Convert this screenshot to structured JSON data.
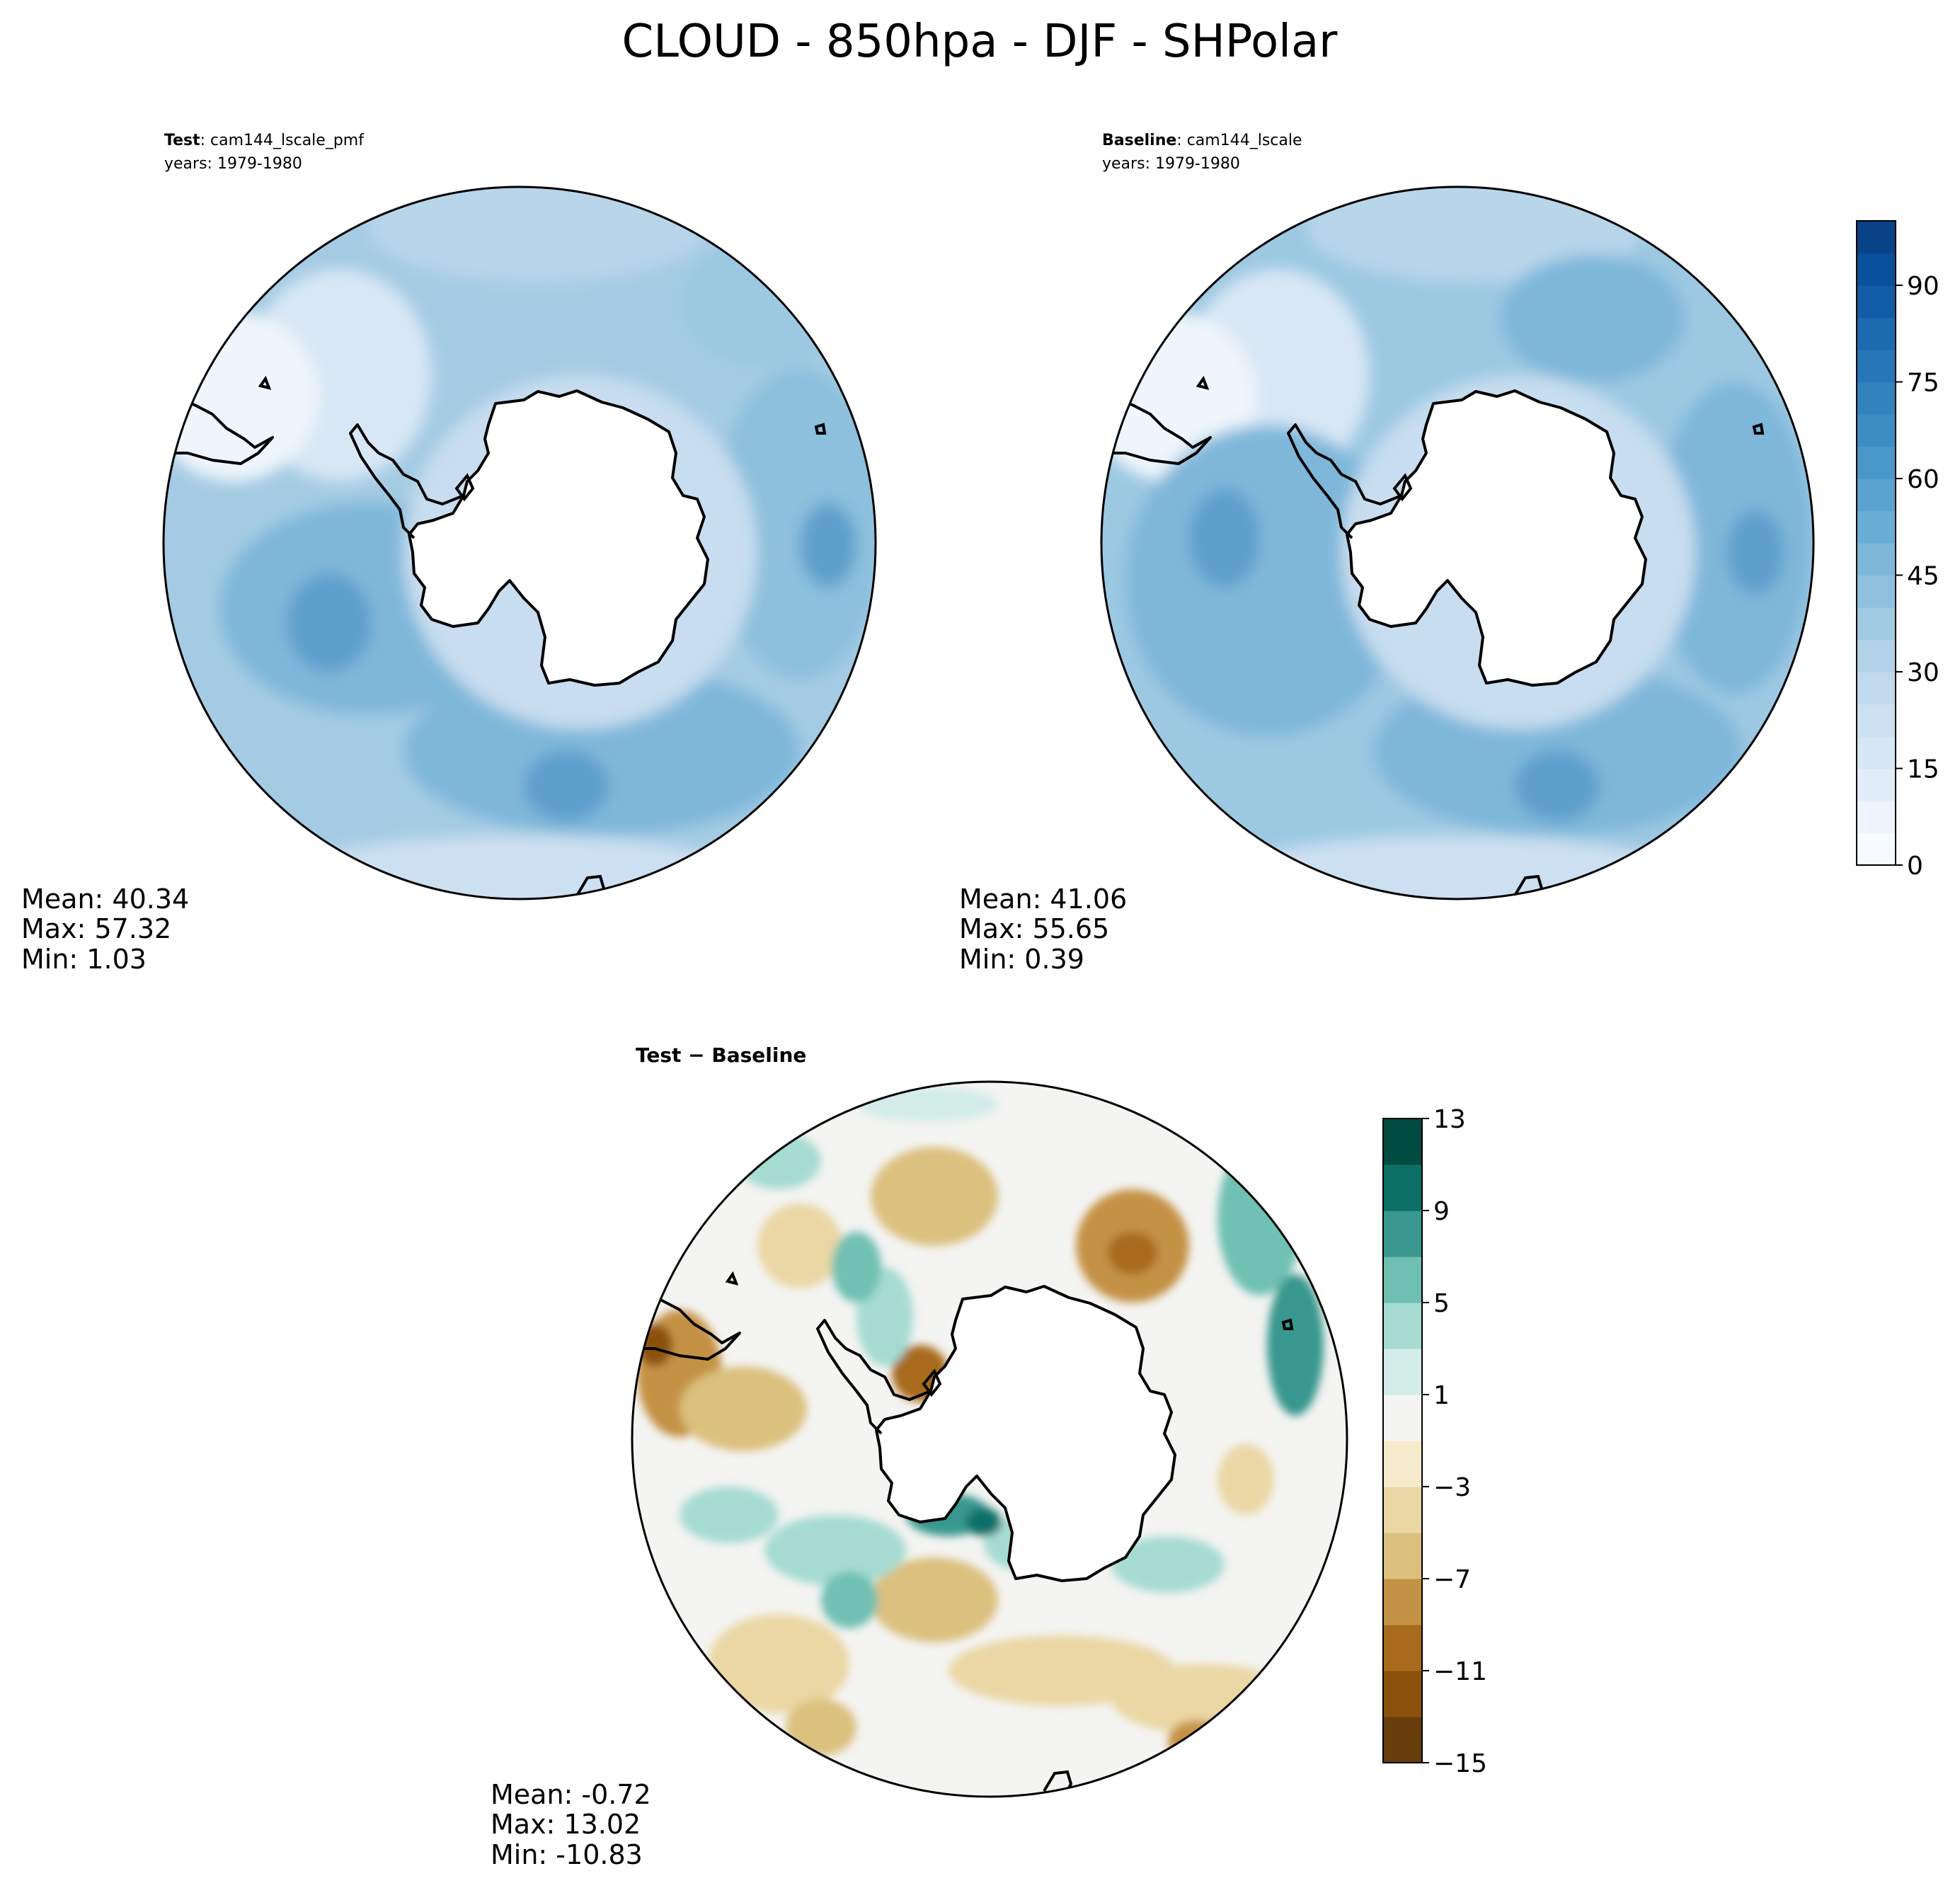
{
  "title": "CLOUD - 850hpa - DJF - SHPolar",
  "colors": {
    "land": "#ffffff",
    "blues": [
      "#f7fbff",
      "#ecf4fc",
      "#e0ecf8",
      "#d6e6f4",
      "#cde0f1",
      "#c0d9ed",
      "#b2d2e8",
      "#a1cbe2",
      "#8fc1de",
      "#7db8da",
      "#6aaed6",
      "#5aa2cf",
      "#4a98c9",
      "#3d8dc4",
      "#3282be",
      "#2777b8",
      "#1c6ab0",
      "#115ca5",
      "#08509b",
      "#084388",
      "#08306b"
    ],
    "diff": [
      "#673d0b",
      "#8a510c",
      "#a86a1d",
      "#c49244",
      "#dbc07e",
      "#ead7a4",
      "#f6ebcc",
      "#f4f4f2",
      "#d3ece8",
      "#a6dbd1",
      "#6fc0b3",
      "#38978e",
      "#0d7067",
      "#024b40"
    ]
  },
  "chart_data": [
    {
      "type": "heatmap",
      "panel": "test",
      "label_bold": "Test",
      "label_rest": ": cam144_lscale_pmf",
      "years": "years: 1979-1980",
      "stats": [
        "Mean: 40.34",
        "Max: 57.32",
        "Min:  1.03"
      ],
      "mean": 40.34,
      "max": 57.32,
      "min": 1.03,
      "projection": "south-polar-stereographic"
    },
    {
      "type": "heatmap",
      "panel": "baseline",
      "label_bold": "Baseline",
      "label_rest": ": cam144_lscale",
      "years": "years: 1979-1980",
      "stats": [
        "Mean: 41.06",
        "Max: 55.65",
        "Min:  0.39"
      ],
      "mean": 41.06,
      "max": 55.65,
      "min": 0.39,
      "projection": "south-polar-stereographic",
      "colorbar": {
        "min": 0,
        "max": 100,
        "levels": 20,
        "ticks": [
          "0",
          "15",
          "30",
          "45",
          "60",
          "75",
          "90"
        ],
        "tick_values": [
          0,
          15,
          30,
          45,
          60,
          75,
          90
        ]
      }
    },
    {
      "type": "heatmap",
      "panel": "difference",
      "label": "Test − Baseline",
      "stats": [
        "Mean: -0.72",
        "Max: 13.02",
        "Min: -10.83"
      ],
      "mean": -0.72,
      "max": 13.02,
      "min": -10.83,
      "projection": "south-polar-stereographic",
      "colorbar": {
        "min": -15,
        "max": 13,
        "levels": 14,
        "ticks": [
          "13",
          "9",
          "5",
          "1",
          "−3",
          "−7",
          "−11",
          "−15"
        ],
        "tick_values": [
          13,
          9,
          5,
          1,
          -3,
          -7,
          -11,
          -15
        ]
      }
    }
  ]
}
